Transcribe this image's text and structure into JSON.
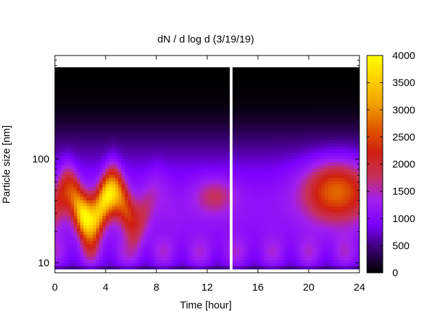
{
  "chart_data": {
    "type": "heatmap",
    "title": "dN / d log d (3/19/19)",
    "xlabel": "Time [hour]",
    "ylabel": "Particle size [nm]",
    "xlim": [
      0,
      24
    ],
    "ylim": [
      8,
      1000
    ],
    "y_scale": "log",
    "x_ticks": [
      "0",
      "4",
      "8",
      "12",
      "16",
      "20",
      "24"
    ],
    "y_ticks": [
      "10",
      "100"
    ],
    "colorbar": {
      "range": [
        0,
        4000
      ],
      "ticks": [
        "0",
        "500",
        "1000",
        "1500",
        "2000",
        "2500",
        "3000",
        "3500",
        "4000"
      ],
      "colors": [
        "#000000",
        "#3a0070",
        "#7c00ff",
        "#a020f0",
        "#c8305a",
        "#d01f10",
        "#e05a00",
        "#f0a000",
        "#ffd000",
        "#ffff00"
      ]
    },
    "data_gap_hours": [
      13.7,
      14.1
    ],
    "size_limits_nm": {
      "lower": 8.7,
      "upper": 770
    },
    "mode_features": [
      {
        "time_range_hours": [
          0,
          7
        ],
        "diameter_nm": 35,
        "peak_value": 3500
      },
      {
        "time_range_hours": [
          11,
          13.7
        ],
        "diameter_nm": 45,
        "peak_value": 1800
      },
      {
        "time_range_hours": [
          19,
          24
        ],
        "diameter_nm": 50,
        "peak_value": 2700
      }
    ]
  }
}
